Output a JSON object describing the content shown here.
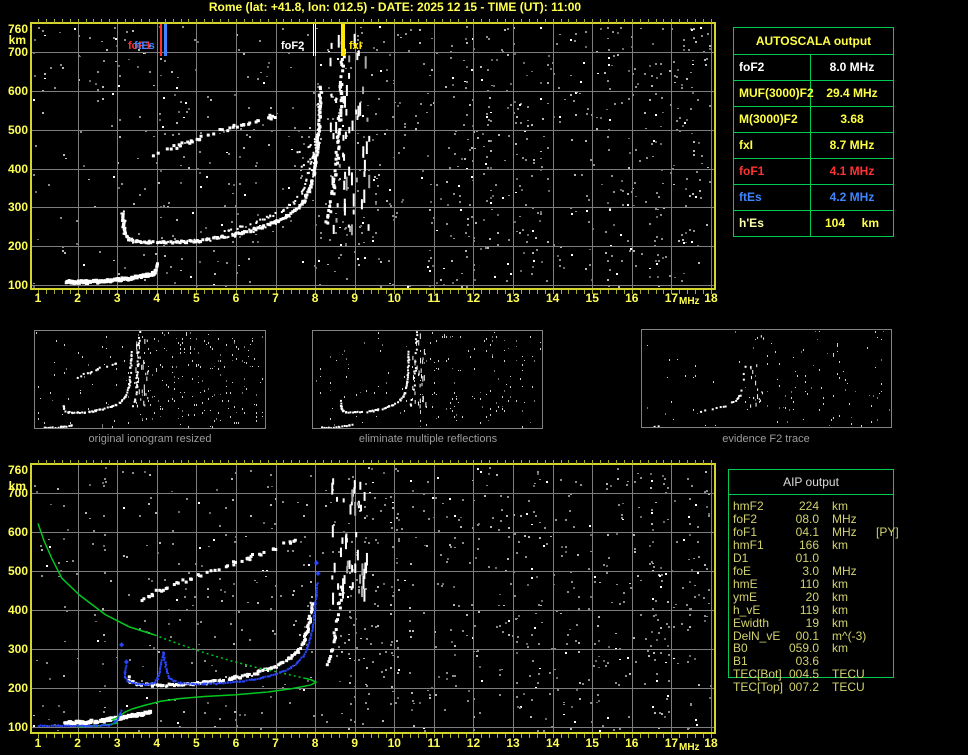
{
  "title": "Rome (lat: +41.8, lon: 012.5) - DATE: 2025 12 15 - TIME (UT): 11:00",
  "colors": {
    "bg": "#000000",
    "axis_label": "#ffff55",
    "plot_border": "#d4d42a",
    "grid": "#7e7e7e",
    "minor_tick": "#a8a82a",
    "table_green": "#00cc55",
    "profile_green": "#00c820",
    "white": "#ffffff",
    "red": "#ff3232",
    "blue_label": "#3f85ff",
    "trace_blue": "#2a46ff",
    "table_yellow": "#ffff44",
    "pale_yellow": "#ffffb0",
    "aip_text": "#d2d26e",
    "aip_header": "#dcdcdc",
    "caption_gray": "#9c9c9c"
  },
  "x_axis": {
    "ticks": [
      "1",
      "2",
      "3",
      "4",
      "5",
      "6",
      "7",
      "8",
      "9",
      "10",
      "11",
      "12",
      "13",
      "14",
      "15",
      "16",
      "17",
      "18"
    ],
    "unit": "MHz"
  },
  "y_axis": {
    "ticks": [
      "760",
      "700",
      "600",
      "500",
      "400",
      "300",
      "200",
      "100"
    ],
    "km": [
      760,
      700,
      600,
      500,
      400,
      300,
      200,
      100
    ],
    "unit": "km"
  },
  "top_plot": {
    "markers": [
      {
        "name": "foF1-marker",
        "label": "foF1",
        "mhz": 4.1,
        "color": "#ff3232",
        "width": 2,
        "style": "solid",
        "label_left": 128
      },
      {
        "name": "ftEs-marker",
        "label": "ftEs",
        "mhz": 4.2,
        "color": "#3f85ff",
        "width": 3,
        "style": "solid",
        "label_left": 134
      },
      {
        "name": "foF2-marker",
        "label": "foF2",
        "mhz": 8.0,
        "color": "#ffffff",
        "width": 2,
        "style": "double",
        "label_left": 281
      },
      {
        "name": "fxI-marker",
        "label": "fxI",
        "mhz": 8.7,
        "color": "#ffe800",
        "width": 4,
        "style": "solid",
        "label_left": 349
      }
    ]
  },
  "autoscala": {
    "header": "AUTOSCALA output",
    "rows": [
      {
        "label": "foF2",
        "value": "8.0 MHz",
        "label_color": "#ffffff",
        "value_color": "#ffffff"
      },
      {
        "label": "MUF(3000)F2",
        "value": "29.4 MHz",
        "label_color": "#ffff44",
        "value_color": "#ffff44"
      },
      {
        "label": "M(3000)F2",
        "value": "3.68",
        "label_color": "#ffff44",
        "value_color": "#ffff44"
      },
      {
        "label": "fxI",
        "value": "8.7 MHz",
        "label_color": "#ffff44",
        "value_color": "#ffff44"
      },
      {
        "label": "foF1",
        "value": "4.1 MHz",
        "label_color": "#ff3232",
        "value_color": "#ff3232"
      },
      {
        "label": "ftEs",
        "value": "4.2 MHz",
        "label_color": "#3f85ff",
        "value_color": "#3f85ff"
      },
      {
        "label": "h'Es",
        "value": "104     km",
        "label_color": "#ffffb0",
        "value_color": "#ffff44"
      }
    ]
  },
  "aip": {
    "header": "AIP output",
    "rows": [
      {
        "label": "hmF2",
        "value": "224",
        "unit": "km",
        "extra": ""
      },
      {
        "label": "foF2",
        "value": "08.0",
        "unit": "MHz",
        "extra": ""
      },
      {
        "label": "foF1",
        "value": "04.1",
        "unit": "MHz",
        "extra": "[PY]"
      },
      {
        "label": "hmF1",
        "value": "166",
        "unit": "km",
        "extra": ""
      },
      {
        "label": "D1",
        "value": "01.0",
        "unit": "",
        "extra": ""
      },
      {
        "label": "foE",
        "value": "3.0",
        "unit": "MHz",
        "extra": ""
      },
      {
        "label": "hmE",
        "value": "110",
        "unit": "km",
        "extra": ""
      },
      {
        "label": "ymE",
        "value": "20",
        "unit": "km",
        "extra": ""
      },
      {
        "label": "h_vE",
        "value": "119",
        "unit": "km",
        "extra": ""
      },
      {
        "label": "Ewidth",
        "value": "19",
        "unit": "km",
        "extra": ""
      },
      {
        "label": "DelN_vE",
        "value": "00.1",
        "unit": "m^(-3)",
        "extra": ""
      },
      {
        "label": "B0",
        "value": "059.0",
        "unit": "km",
        "extra": ""
      },
      {
        "label": "B1",
        "value": "03.6",
        "unit": "",
        "extra": ""
      },
      {
        "label": "TEC[Bot]",
        "value": "004.5",
        "unit": "TECU",
        "extra": ""
      },
      {
        "label": "TEC[Top]",
        "value": "007.2",
        "unit": "TECU",
        "extra": ""
      }
    ]
  },
  "thumbnails": [
    {
      "caption": "original ionogram resized",
      "show": [
        "es",
        "f_o",
        "f2_multiple",
        "x_mode",
        "cluster"
      ],
      "noise": 0.02
    },
    {
      "caption": "eliminate multiple reflections",
      "show": [
        "es",
        "f_o",
        "x_mode",
        "cluster"
      ],
      "noise": 0.017
    },
    {
      "caption": "evidence F2 trace",
      "show": [
        "t3_es",
        "t3_f",
        "cluster_small"
      ],
      "noise": 0.01
    }
  ],
  "chart_data": {
    "type": "ionogram",
    "station": "Rome",
    "lat": "+41.8",
    "lon": "012.5",
    "date": "2025 12 15",
    "time_ut": "11:00",
    "x_axis_mhz": [
      1,
      18
    ],
    "y_axis_km": [
      100,
      760
    ],
    "scaled_parameters": {
      "foF2_MHz": 8.0,
      "MUF3000F2_MHz": 29.4,
      "M3000F2": 3.68,
      "fxI_MHz": 8.7,
      "foF1_MHz": 4.1,
      "ftEs_MHz": 4.2,
      "hEs_km": 104
    },
    "profile_parameters": {
      "hmF2_km": 224,
      "foF2_MHz": 8.0,
      "foF1_MHz": 4.1,
      "hmF1_km": 166,
      "D1": 1.0,
      "foE_MHz": 3.0,
      "hmE_km": 110,
      "ymE_km": 20,
      "h_vE_km": 119,
      "Ewidth_km": 19,
      "DelN_vE_m3": 0.1,
      "B0_km": 59.0,
      "B1": 3.6,
      "TEC_bot_TECU": 4.5,
      "TEC_top_TECU": 7.2
    },
    "traces": {
      "es": [
        [
          1.75,
          108
        ],
        [
          2.2,
          107
        ],
        [
          2.6,
          109
        ],
        [
          3.0,
          113
        ],
        [
          3.4,
          118
        ],
        [
          3.75,
          124
        ],
        [
          3.95,
          130
        ]
      ],
      "es_tail": [
        [
          3.95,
          130
        ],
        [
          4.02,
          157
        ]
      ],
      "f_o": [
        [
          3.15,
          285
        ],
        [
          3.17,
          252
        ],
        [
          3.2,
          230
        ],
        [
          3.3,
          217
        ],
        [
          3.5,
          212
        ],
        [
          3.8,
          210
        ],
        [
          4.2,
          210
        ],
        [
          4.7,
          211
        ],
        [
          5.1,
          214
        ],
        [
          5.5,
          220
        ],
        [
          5.9,
          228
        ],
        [
          6.3,
          238
        ],
        [
          6.7,
          250
        ],
        [
          7.0,
          262
        ],
        [
          7.3,
          277
        ],
        [
          7.5,
          292
        ],
        [
          7.7,
          314
        ],
        [
          7.85,
          342
        ],
        [
          7.95,
          376
        ],
        [
          8.02,
          415
        ],
        [
          8.07,
          458
        ],
        [
          8.1,
          508
        ],
        [
          8.12,
          558
        ],
        [
          8.14,
          612
        ]
      ],
      "f_o2": [
        [
          5.7,
          236
        ],
        [
          6.1,
          248
        ],
        [
          6.5,
          262
        ],
        [
          6.9,
          278
        ],
        [
          7.2,
          294
        ],
        [
          7.45,
          313
        ],
        [
          7.65,
          338
        ],
        [
          7.8,
          368
        ],
        [
          7.9,
          402
        ],
        [
          7.98,
          440
        ],
        [
          8.04,
          480
        ]
      ],
      "x_mode": [
        [
          8.27,
          250
        ],
        [
          8.36,
          288
        ],
        [
          8.45,
          332
        ],
        [
          8.52,
          386
        ],
        [
          8.58,
          450
        ],
        [
          8.62,
          522
        ],
        [
          8.66,
          602
        ],
        [
          8.7,
          684
        ],
        [
          8.72,
          742
        ]
      ],
      "arcs": [
        [
          [
            7.4,
            395
          ],
          [
            7.7,
            408
          ],
          [
            7.95,
            428
          ],
          [
            8.1,
            458
          ]
        ],
        [
          [
            7.55,
            440
          ],
          [
            7.85,
            456
          ],
          [
            8.05,
            482
          ]
        ]
      ],
      "f2_multiple": [
        [
          3.95,
          432
        ],
        [
          4.5,
          456
        ],
        [
          5.1,
          478
        ],
        [
          5.7,
          500
        ],
        [
          6.3,
          518
        ],
        [
          6.9,
          532
        ],
        [
          7.15,
          540
        ]
      ],
      "cluster_top": {
        "f": [
          8.35,
          9.35
        ],
        "km": [
          250,
          748
        ],
        "n": 60
      },
      "es_b": [
        [
          1.7,
          110
        ],
        [
          2.2,
          112
        ],
        [
          2.7,
          117
        ],
        [
          3.1,
          124
        ],
        [
          3.5,
          131
        ],
        [
          3.85,
          138
        ]
      ],
      "f_o_b": [
        [
          3.3,
          228
        ],
        [
          3.33,
          216
        ],
        [
          3.5,
          210
        ],
        [
          3.9,
          207
        ],
        [
          4.4,
          208
        ],
        [
          4.9,
          211
        ],
        [
          5.3,
          214
        ],
        [
          5.7,
          220
        ],
        [
          6.1,
          228
        ],
        [
          6.5,
          238
        ],
        [
          6.8,
          248
        ],
        [
          7.1,
          261
        ],
        [
          7.35,
          275
        ],
        [
          7.55,
          293
        ],
        [
          7.7,
          316
        ],
        [
          7.8,
          346
        ],
        [
          7.88,
          382
        ],
        [
          7.93,
          418
        ]
      ],
      "x_mode_b": [
        [
          8.3,
          256
        ],
        [
          8.4,
          292
        ],
        [
          8.5,
          332
        ],
        [
          8.57,
          376
        ],
        [
          8.62,
          420
        ],
        [
          8.67,
          462
        ]
      ],
      "f2_multiple_b": [
        [
          3.6,
          428
        ],
        [
          4.2,
          455
        ],
        [
          4.9,
          482
        ],
        [
          5.6,
          508
        ],
        [
          6.3,
          532
        ],
        [
          7.0,
          556
        ],
        [
          7.5,
          580
        ]
      ],
      "cluster_bottom": {
        "f": [
          8.4,
          9.3
        ],
        "km": [
          440,
          740
        ],
        "n": 48
      },
      "profile_topside_solid": [
        [
          1.0,
          622
        ],
        [
          1.15,
          578
        ],
        [
          1.35,
          532
        ],
        [
          1.6,
          482
        ],
        [
          2.05,
          438
        ],
        [
          2.7,
          388
        ],
        [
          3.3,
          357
        ],
        [
          3.95,
          336
        ]
      ],
      "profile_topside_dotted": [
        [
          3.95,
          336
        ],
        [
          4.5,
          315
        ],
        [
          5.0,
          297
        ],
        [
          5.5,
          281
        ],
        [
          6.0,
          266
        ],
        [
          6.5,
          253
        ],
        [
          7.0,
          242
        ],
        [
          7.4,
          233
        ],
        [
          7.7,
          226
        ]
      ],
      "profile_bottomside": [
        [
          7.7,
          226
        ],
        [
          7.9,
          221
        ],
        [
          8.02,
          215
        ],
        [
          7.9,
          208
        ],
        [
          7.4,
          198
        ],
        [
          6.8,
          190
        ],
        [
          6.0,
          183
        ],
        [
          5.2,
          178
        ],
        [
          4.6,
          173
        ],
        [
          4.1,
          166
        ],
        [
          3.7,
          156
        ],
        [
          3.4,
          147
        ],
        [
          3.2,
          138
        ],
        [
          3.05,
          128
        ],
        [
          2.95,
          121
        ],
        [
          2.88,
          119
        ],
        [
          2.97,
          113
        ],
        [
          3.0,
          110
        ],
        [
          2.85,
          107
        ],
        [
          2.6,
          104
        ],
        [
          2.3,
          102
        ],
        [
          2.0,
          100.5
        ]
      ],
      "blue_es": [
        [
          1.02,
          103
        ],
        [
          1.5,
          103
        ],
        [
          2.0,
          103
        ],
        [
          2.5,
          103
        ],
        [
          2.8,
          104
        ]
      ],
      "blue_es_rise": [
        [
          2.85,
          107
        ],
        [
          2.95,
          113
        ],
        [
          3.02,
          121
        ],
        [
          3.07,
          131
        ],
        [
          3.1,
          143
        ]
      ],
      "blue_f": [
        [
          3.22,
          255
        ],
        [
          3.2,
          240
        ],
        [
          3.2,
          228
        ],
        [
          3.27,
          218
        ],
        [
          3.37,
          213
        ],
        [
          3.55,
          210
        ],
        [
          3.75,
          209
        ],
        [
          3.95,
          213
        ],
        [
          4.02,
          224
        ],
        [
          4.07,
          242
        ],
        [
          4.11,
          260
        ],
        [
          4.14,
          278
        ],
        [
          4.17,
          290
        ],
        [
          4.21,
          266
        ],
        [
          4.25,
          243
        ],
        [
          4.31,
          227
        ],
        [
          4.42,
          218
        ],
        [
          4.6,
          213
        ],
        [
          4.9,
          211
        ],
        [
          5.2,
          210
        ],
        [
          5.5,
          211
        ],
        [
          5.8,
          213
        ],
        [
          6.1,
          216
        ],
        [
          6.4,
          221
        ],
        [
          6.7,
          227
        ],
        [
          7.0,
          235
        ],
        [
          7.2,
          243
        ],
        [
          7.4,
          253
        ],
        [
          7.55,
          265
        ],
        [
          7.7,
          281
        ],
        [
          7.8,
          302
        ],
        [
          7.88,
          328
        ],
        [
          7.94,
          356
        ],
        [
          7.98,
          386
        ],
        [
          8.01,
          416
        ],
        [
          8.04,
          446
        ],
        [
          8.06,
          468
        ]
      ],
      "blue_points": [
        [
          3.1,
          312
        ],
        [
          3.22,
          268
        ],
        [
          8.06,
          495
        ],
        [
          8.02,
          522
        ]
      ],
      "t3_f": [
        [
          4.6,
          210
        ],
        [
          5.3,
          214
        ],
        [
          6.0,
          226
        ],
        [
          6.6,
          242
        ],
        [
          7.0,
          258
        ],
        [
          7.3,
          274
        ],
        [
          7.55,
          292
        ],
        [
          7.7,
          315
        ],
        [
          7.8,
          345
        ],
        [
          7.9,
          385
        ],
        [
          7.95,
          425
        ],
        [
          8.0,
          470
        ],
        [
          8.03,
          510
        ]
      ],
      "t3_es": [
        [
          1.6,
          108
        ],
        [
          2.2,
          112
        ]
      ]
    }
  }
}
